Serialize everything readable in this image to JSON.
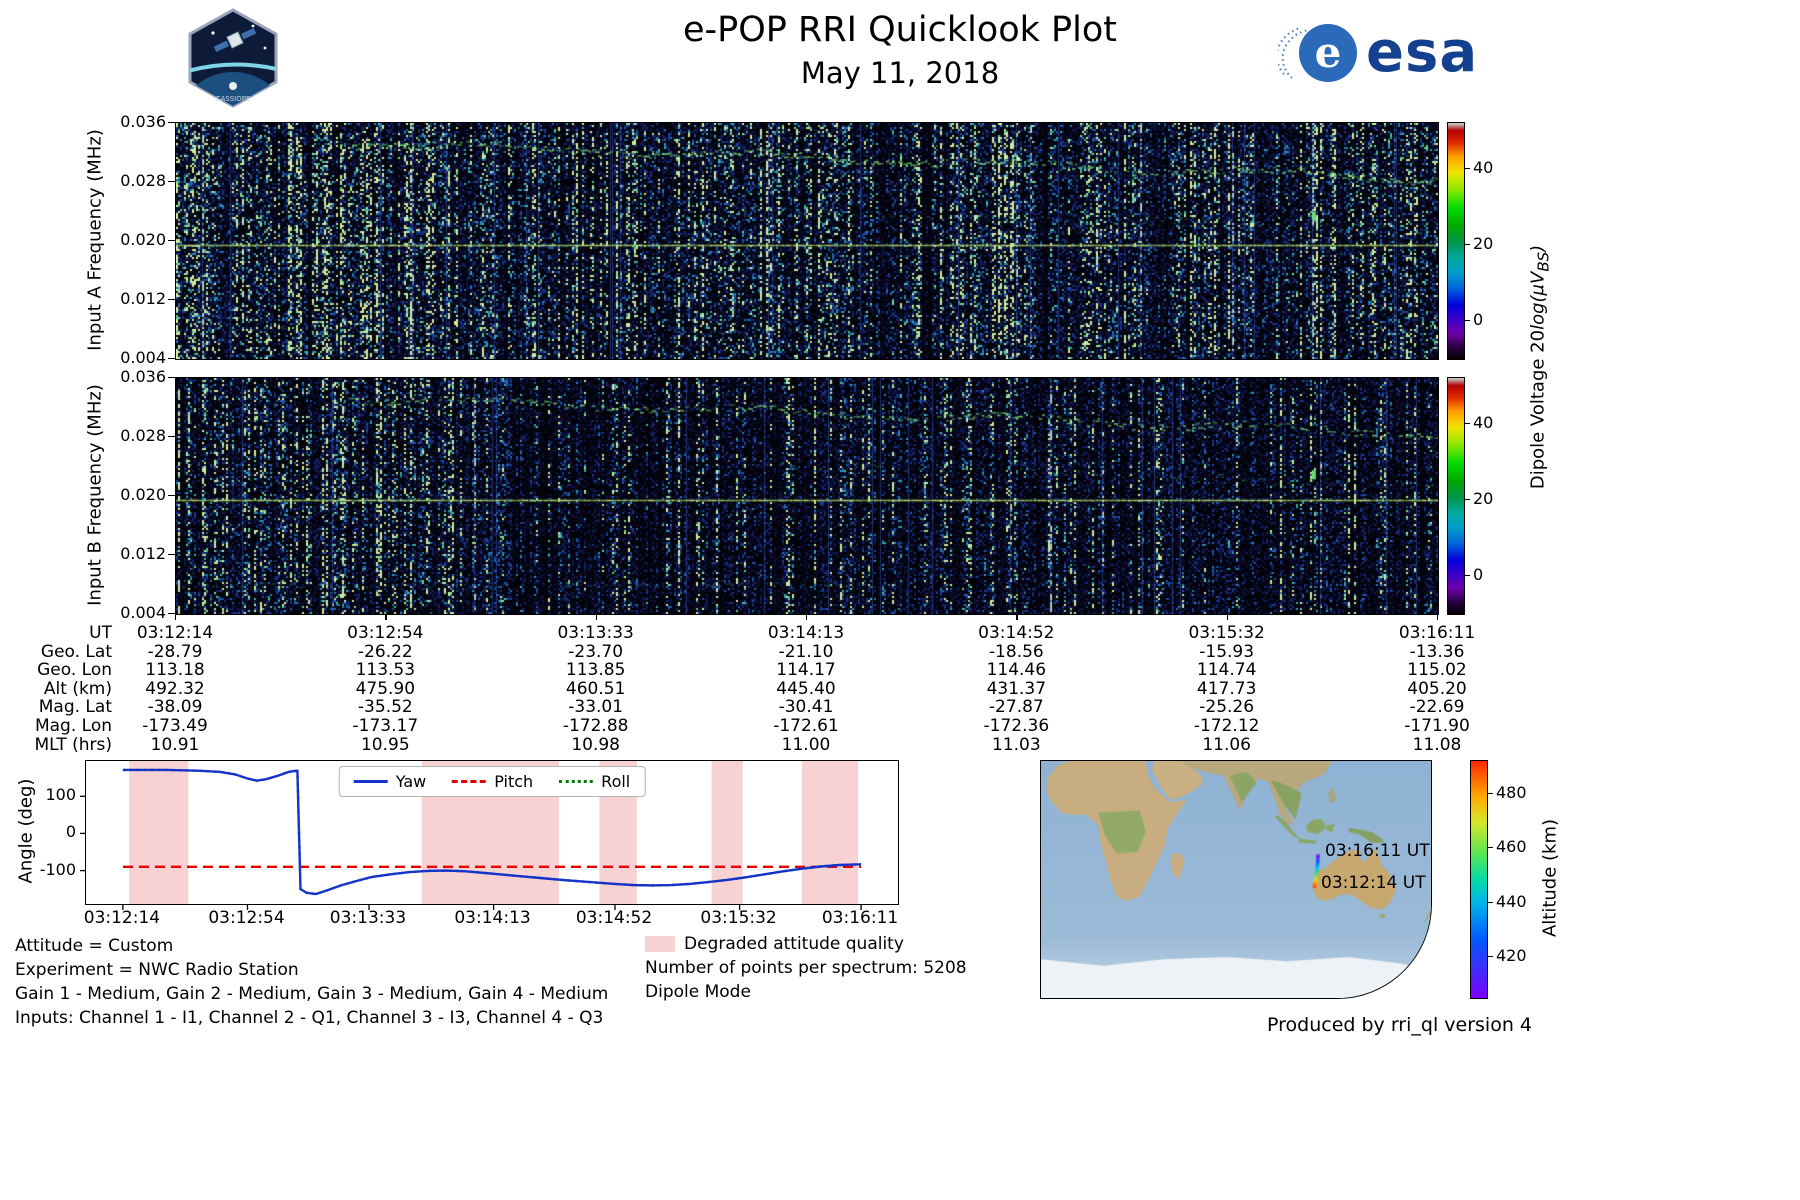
{
  "header": {
    "title": "e-POP RRI Quicklook Plot",
    "date": "May 11, 2018",
    "esa_text": "esa",
    "patch_text": "CASSIOPE"
  },
  "dipole_colorbar": {
    "label_prefix": "Dipole Voltage 20",
    "label_math": "log(μV",
    "label_sub": "BS",
    "label_suffix": ")",
    "ticks": [
      40,
      20,
      0
    ],
    "vmin": -10,
    "vmax": 52,
    "colormap": "nipy_spectral"
  },
  "ephemeris": {
    "row_labels": [
      "UT",
      "Geo. Lat",
      "Geo. Lon",
      "Alt (km)",
      "Mag. Lat",
      "Mag. Lon",
      "MLT (hrs)"
    ],
    "rows": [
      [
        "03:12:14",
        "03:12:54",
        "03:13:33",
        "03:14:13",
        "03:14:52",
        "03:15:32",
        "03:16:11"
      ],
      [
        "-28.79",
        "-26.22",
        "-23.70",
        "-21.10",
        "-18.56",
        "-15.93",
        "-13.36"
      ],
      [
        "113.18",
        "113.53",
        "113.85",
        "114.17",
        "114.46",
        "114.74",
        "115.02"
      ],
      [
        "492.32",
        "475.90",
        "460.51",
        "445.40",
        "431.37",
        "417.73",
        "405.20"
      ],
      [
        "-38.09",
        "-35.52",
        "-33.01",
        "-30.41",
        "-27.87",
        "-25.26",
        "-22.69"
      ],
      [
        "-173.49",
        "-173.17",
        "-172.88",
        "-172.61",
        "-172.36",
        "-172.12",
        "-171.90"
      ],
      [
        "10.91",
        "10.95",
        "10.98",
        "11.00",
        "11.03",
        "11.06",
        "11.08"
      ]
    ]
  },
  "annotations": {
    "left": [
      "Attitude = Custom",
      "Experiment = NWC Radio Station",
      "Gain 1 - Medium, Gain 2 - Medium, Gain 3 - Medium, Gain 4 - Medium",
      "Inputs: Channel 1 - I1, Channel 2 - Q1, Channel 3 - I3, Channel 4 - Q3"
    ],
    "degraded_label": "Degraded attitude quality",
    "points_per_spectrum": "Number of points per spectrum: 5208",
    "mode": "Dipole Mode",
    "produced_by": "Produced by rri_ql version 4"
  },
  "chart_data": [
    {
      "type": "heatmap",
      "name": "input-a-spectrogram",
      "ylabel": "Input A Frequency (MHz)",
      "ylim_mhz": [
        0.004,
        0.036
      ],
      "ytick_labels": [
        "0.036",
        "0.028",
        "0.020",
        "0.012",
        "0.004"
      ],
      "time_start": "03:12:14",
      "time_end": "03:16:11",
      "features": {
        "carrier_line_mhz": 0.0195,
        "upper_band_mhz": [
          0.0335,
          0.0285
        ],
        "mid_band_mhz": [
          0.0245,
          0.0215
        ],
        "low_band_mhz": 0.008,
        "bright_blob": {
          "x_frac": 0.9,
          "freq_mhz": 0.024
        }
      },
      "noise_seed": 7,
      "gain": 1.0
    },
    {
      "type": "heatmap",
      "name": "input-b-spectrogram",
      "ylabel": "Input B Frequency (MHz)",
      "ylim_mhz": [
        0.004,
        0.036
      ],
      "ytick_labels": [
        "0.036",
        "0.028",
        "0.020",
        "0.012",
        "0.004"
      ],
      "time_start": "03:12:14",
      "time_end": "03:16:11",
      "features": {
        "carrier_line_mhz": 0.0195,
        "upper_band_mhz": [
          0.0335,
          0.0285
        ],
        "mid_band_mhz": [
          0.0245,
          0.0215
        ],
        "low_band_mhz": 0.008,
        "bright_blob": {
          "x_frac": 0.9,
          "freq_mhz": 0.0235
        }
      },
      "noise_seed": 13,
      "gain": 0.72
    },
    {
      "type": "line",
      "name": "attitude-angles",
      "ylabel": "Angle (deg)",
      "yticks": [
        100,
        0,
        -100
      ],
      "ylim": [
        -190,
        195
      ],
      "x_ticks": [
        "03:12:14",
        "03:12:54",
        "03:13:33",
        "03:14:13",
        "03:14:52",
        "03:15:32",
        "03:16:11"
      ],
      "x_tick_seconds": [
        0,
        40,
        79,
        119,
        158,
        198,
        237
      ],
      "series": [
        {
          "name": "Yaw",
          "color": "#1433cc",
          "style": "solid",
          "x": [
            0,
            14,
            24,
            31,
            36,
            40,
            43,
            46,
            50,
            53,
            55,
            56,
            57,
            59,
            62,
            66,
            70,
            75,
            80,
            86,
            92,
            98,
            104,
            110,
            118,
            126,
            134,
            142,
            150,
            158,
            164,
            170,
            176,
            182,
            188,
            194,
            200,
            206,
            212,
            218,
            224,
            230,
            237
          ],
          "y": [
            171,
            171,
            169,
            166,
            159,
            148,
            142,
            146,
            156,
            165,
            168,
            168,
            -150,
            -160,
            -163,
            -152,
            -140,
            -128,
            -117,
            -110,
            -104,
            -101,
            -100,
            -102,
            -108,
            -114,
            -120,
            -126,
            -131,
            -136,
            -139,
            -140,
            -139,
            -136,
            -131,
            -125,
            -118,
            -110,
            -102,
            -95,
            -89,
            -85,
            -83
          ]
        },
        {
          "name": "Pitch",
          "color": "#e50000",
          "style": "dashed",
          "x": [
            0,
            237
          ],
          "y": [
            -90,
            -90
          ]
        },
        {
          "name": "Roll",
          "color": "#007a00",
          "style": "dotted",
          "overlaps": "Yaw"
        }
      ],
      "degraded_regions_s": [
        [
          2,
          21
        ],
        [
          96,
          140
        ],
        [
          153,
          165
        ],
        [
          189,
          199
        ],
        [
          218,
          236
        ]
      ],
      "degraded_color": "#f8d2d2"
    },
    {
      "type": "map",
      "name": "ground-track-map",
      "extent": {
        "lon_min": -20,
        "lon_max": 170,
        "lat_min": -80,
        "lat_max": 30
      },
      "track": {
        "lon": [
          113.18,
          115.02
        ],
        "lat": [
          -28.79,
          -13.36
        ],
        "alt_km": [
          492.32,
          405.2
        ]
      },
      "labels": [
        {
          "text": "03:16:11 UT",
          "anchor": "track-end"
        },
        {
          "text": "03:12:14 UT",
          "anchor": "track-start"
        }
      ],
      "colorbar": {
        "label": "Altitude (km)",
        "ticks": [
          480,
          460,
          440,
          420
        ],
        "vmin": 405,
        "vmax": 492
      }
    }
  ]
}
